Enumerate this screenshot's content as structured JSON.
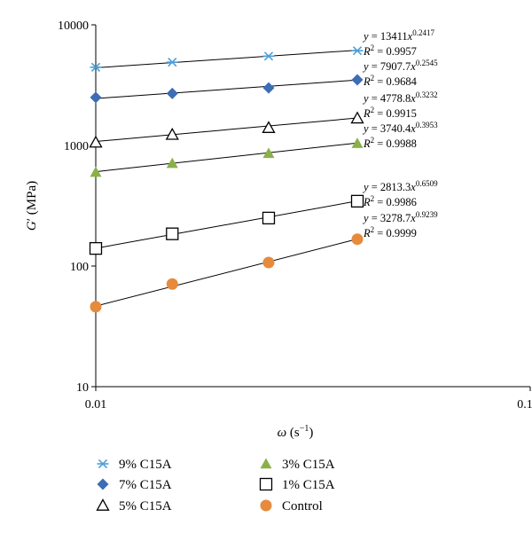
{
  "chart_data": {
    "type": "scatter",
    "xlabel": {
      "symbol": "ω",
      "unit_open": " (s",
      "unit_sup": "−1",
      "unit_close": ")"
    },
    "ylabel": {
      "symbol": "G",
      "prime": "′",
      "unit": " (MPa)"
    },
    "x_scale": "log",
    "y_scale": "log",
    "xlim": [
      0.01,
      0.1
    ],
    "ylim": [
      10,
      10000
    ],
    "x_ticks": [
      {
        "value": 0.01,
        "label": "0.01"
      },
      {
        "value": 0.1,
        "label": "0.1"
      }
    ],
    "y_ticks": [
      {
        "value": 10,
        "label": "10"
      },
      {
        "value": 100,
        "label": "100"
      },
      {
        "value": 1000,
        "label": "1000"
      },
      {
        "value": 10000,
        "label": "10000"
      }
    ],
    "grid": false,
    "legend_position": "bottom",
    "x": [
      0.01,
      0.015,
      0.025,
      0.04
    ],
    "series": [
      {
        "name": "9% C15A",
        "marker": "asterisk",
        "color": "#4f9fd6",
        "values": [
          4450,
          4900,
          5500,
          6100
        ],
        "fit": {
          "coef": 13411,
          "exp": 0.2417,
          "coef_text": "13411",
          "exp_text": "0.2417",
          "r2_text": "0.9957"
        }
      },
      {
        "name": "7% C15A",
        "marker": "diamond",
        "color": "#3d6db5",
        "values": [
          2500,
          2700,
          3000,
          3500
        ],
        "fit": {
          "coef": 7907.7,
          "exp": 0.2545,
          "coef_text": "7907.7",
          "exp_text": "0.2545",
          "r2_text": "0.9684"
        }
      },
      {
        "name": "5% C15A",
        "marker": "triangle-open",
        "color": "#000000",
        "values": [
          1060,
          1230,
          1400,
          1680
        ],
        "fit": {
          "coef": 4778.8,
          "exp": 0.3232,
          "coef_text": "4778.8",
          "exp_text": "0.3232",
          "r2_text": "0.9915"
        }
      },
      {
        "name": "3% C15A",
        "marker": "triangle-filled",
        "color": "#8ab04a",
        "values": [
          600,
          710,
          860,
          1040
        ],
        "fit": {
          "coef": 3740.4,
          "exp": 0.3953,
          "coef_text": "3740.4",
          "exp_text": "0.3953",
          "r2_text": "0.9988"
        }
      },
      {
        "name": "1% C15A",
        "marker": "square-open",
        "color": "#000000",
        "values": [
          140,
          185,
          250,
          345
        ],
        "fit": {
          "coef": 2813.3,
          "exp": 0.6509,
          "coef_text": "2813.3",
          "exp_text": "0.6509",
          "r2_text": "0.9986"
        }
      },
      {
        "name": "Control",
        "marker": "circle",
        "color": "#e68a3c",
        "values": [
          46,
          71,
          107,
          167
        ],
        "fit": {
          "coef": 3278.7,
          "exp": 0.9239,
          "coef_text": "3278.7",
          "exp_text": "0.9239",
          "r2_text": "0.9999"
        }
      }
    ],
    "equation_text": {
      "lhs": "y",
      "eq": " = ",
      "x": "x",
      "r2_lhs": "R",
      "r2_sup": "2",
      "r2_eq": " = "
    }
  }
}
